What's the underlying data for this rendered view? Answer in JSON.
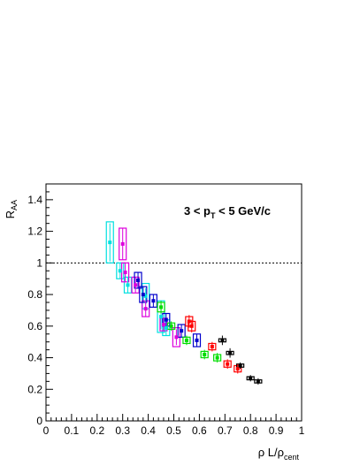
{
  "chart_data": {
    "type": "scatter",
    "title": "",
    "annotation": {
      "pre": "3 < p",
      "sub": "T",
      "post": " < 5 GeV/c"
    },
    "xlabel": {
      "main": "ρ L/ρ",
      "sub": "cent"
    },
    "ylabel": {
      "main": "R",
      "sub": "AA"
    },
    "xlim": [
      0,
      1
    ],
    "ylim": [
      0,
      1.5
    ],
    "x_ticks": [
      0,
      0.1,
      0.2,
      0.3,
      0.4,
      0.5,
      0.6,
      0.7,
      0.8,
      0.9,
      1
    ],
    "x_tick_labels": [
      "0",
      "0.1",
      "0.2",
      "0.3",
      "0.4",
      "0.5",
      "0.6",
      "0.7",
      "0.8",
      "0.9",
      "1"
    ],
    "y_ticks": [
      0,
      0.2,
      0.4,
      0.6,
      0.8,
      1,
      1.2,
      1.4
    ],
    "y_tick_labels": [
      "0",
      "0.2",
      "0.4",
      "0.6",
      "0.8",
      "1",
      "1.2",
      "1.4"
    ],
    "reference_line": {
      "y": 1,
      "style": "dashed"
    },
    "grid": false,
    "legend": "none",
    "series": [
      {
        "color": "#00e0e0",
        "points": [
          {
            "x": 0.25,
            "y": 1.13,
            "err": 0.12,
            "syst": 0.13
          },
          {
            "x": 0.29,
            "y": 0.95,
            "err": 0.05,
            "syst": 0.05
          },
          {
            "x": 0.32,
            "y": 0.86,
            "err": 0.05,
            "syst": 0.05
          },
          {
            "x": 0.39,
            "y": 0.79,
            "err": 0.05,
            "syst": 0.08
          },
          {
            "x": 0.45,
            "y": 0.66,
            "err": 0.08,
            "syst": 0.1
          },
          {
            "x": 0.47,
            "y": 0.59,
            "err": 0.05,
            "syst": 0.05
          }
        ]
      },
      {
        "color": "#dd00dd",
        "points": [
          {
            "x": 0.3,
            "y": 1.12,
            "err": 0.1,
            "syst": 0.1
          },
          {
            "x": 0.31,
            "y": 0.94,
            "err": 0.06,
            "syst": 0.06
          },
          {
            "x": 0.35,
            "y": 0.86,
            "err": 0.05,
            "syst": 0.05
          },
          {
            "x": 0.39,
            "y": 0.71,
            "err": 0.05,
            "syst": 0.05
          },
          {
            "x": 0.46,
            "y": 0.61,
            "err": 0.04,
            "syst": 0.04
          },
          {
            "x": 0.51,
            "y": 0.53,
            "err": 0.05,
            "syst": 0.06
          }
        ]
      },
      {
        "color": "#0000cc",
        "points": [
          {
            "x": 0.36,
            "y": 0.89,
            "err": 0.05,
            "syst": 0.05
          },
          {
            "x": 0.38,
            "y": 0.8,
            "err": 0.05,
            "syst": 0.05
          },
          {
            "x": 0.42,
            "y": 0.76,
            "err": 0.04,
            "syst": 0.04
          },
          {
            "x": 0.47,
            "y": 0.64,
            "err": 0.04,
            "syst": 0.04
          },
          {
            "x": 0.53,
            "y": 0.57,
            "err": 0.04,
            "syst": 0.04
          },
          {
            "x": 0.59,
            "y": 0.51,
            "err": 0.04,
            "syst": 0.04
          }
        ]
      },
      {
        "color": "#00dd00",
        "points": [
          {
            "x": 0.45,
            "y": 0.72,
            "err": 0.04,
            "syst": 0.03
          },
          {
            "x": 0.49,
            "y": 0.6,
            "err": 0.03,
            "syst": 0.02
          },
          {
            "x": 0.55,
            "y": 0.51,
            "err": 0.03,
            "syst": 0.02
          },
          {
            "x": 0.62,
            "y": 0.42,
            "err": 0.03,
            "syst": 0.02
          },
          {
            "x": 0.67,
            "y": 0.4,
            "err": 0.03,
            "syst": 0.02
          }
        ]
      },
      {
        "color": "#ff0000",
        "points": [
          {
            "x": 0.56,
            "y": 0.63,
            "err": 0.04,
            "syst": 0.03
          },
          {
            "x": 0.57,
            "y": 0.6,
            "err": 0.04,
            "syst": 0.03
          },
          {
            "x": 0.65,
            "y": 0.47,
            "err": 0.03,
            "syst": 0.02
          },
          {
            "x": 0.71,
            "y": 0.36,
            "err": 0.03,
            "syst": 0.02
          },
          {
            "x": 0.75,
            "y": 0.33,
            "err": 0.03,
            "syst": 0.02
          }
        ]
      },
      {
        "color": "#000000",
        "points": [
          {
            "x": 0.69,
            "y": 0.51,
            "err": 0.03,
            "syst": 0.01
          },
          {
            "x": 0.72,
            "y": 0.43,
            "err": 0.03,
            "syst": 0.01
          },
          {
            "x": 0.76,
            "y": 0.35,
            "err": 0.02,
            "syst": 0.01
          },
          {
            "x": 0.8,
            "y": 0.27,
            "err": 0.02,
            "syst": 0.01
          },
          {
            "x": 0.83,
            "y": 0.25,
            "err": 0.02,
            "syst": 0.01
          }
        ]
      }
    ]
  }
}
